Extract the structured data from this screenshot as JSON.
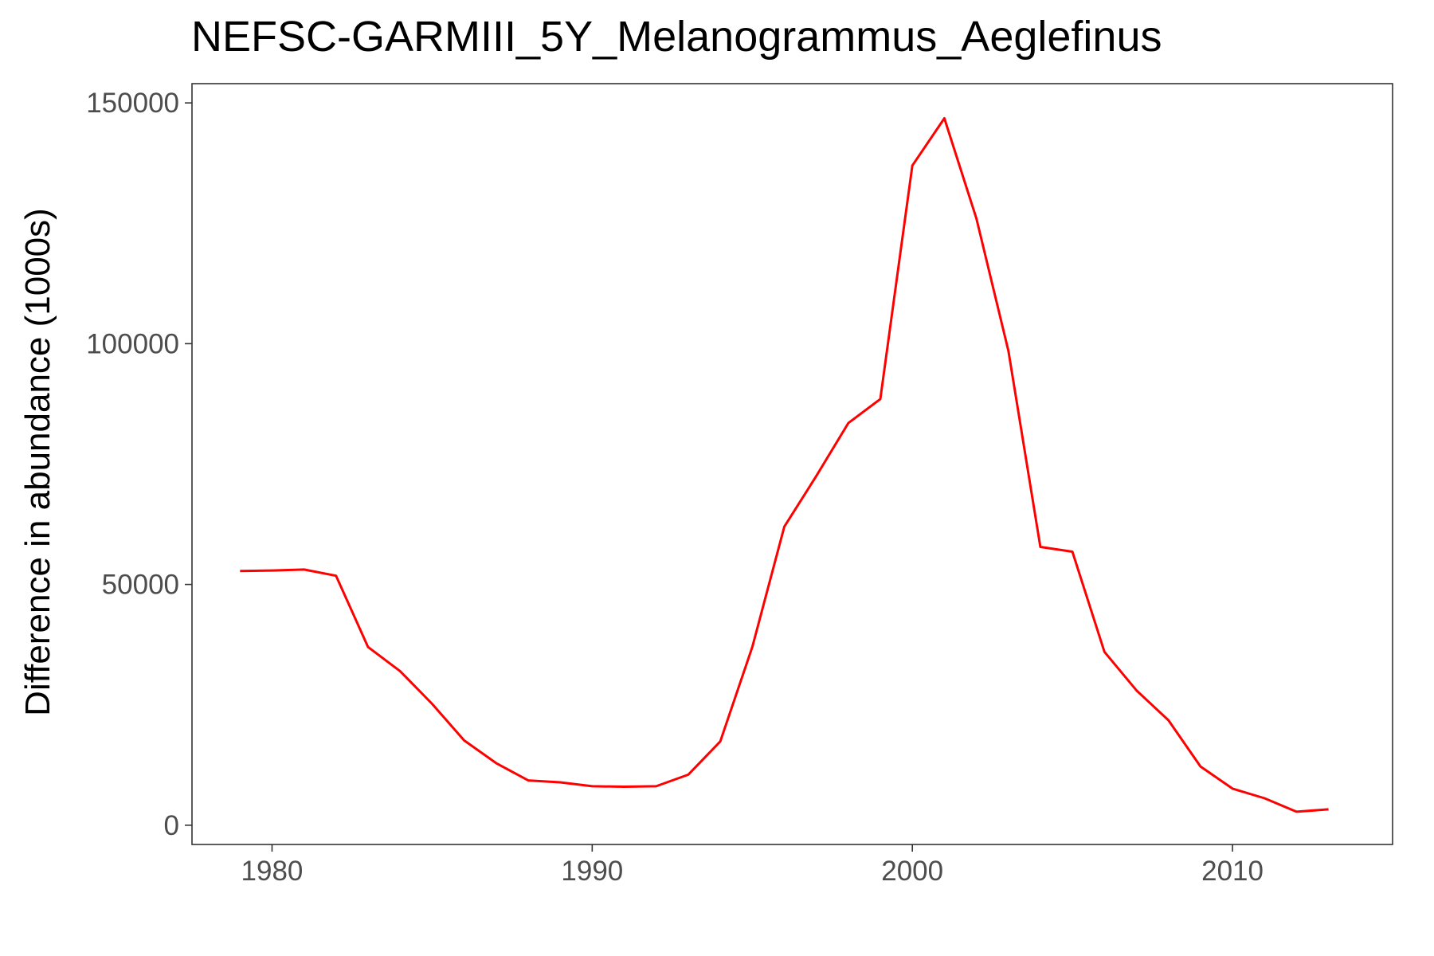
{
  "chart_data": {
    "type": "line",
    "title": "NEFSC-GARMIII_5Y_Melanogrammus_Aeglefinus",
    "xlabel": "",
    "ylabel": "Difference in abundance (1000s)",
    "xlim": [
      1977.5,
      2015
    ],
    "ylim": [
      -4000,
      154000
    ],
    "x_ticks": [
      1980,
      1990,
      2000,
      2010
    ],
    "y_ticks": [
      0,
      50000,
      100000,
      150000
    ],
    "x_tick_labels": [
      "1980",
      "1990",
      "2000",
      "2010"
    ],
    "y_tick_labels": [
      "0",
      "50000",
      "100000",
      "150000"
    ],
    "grid": false,
    "legend": "none",
    "series": [
      {
        "color": "#ff0000",
        "points": [
          [
            1979,
            52800
          ],
          [
            1980,
            52900
          ],
          [
            1981,
            53100
          ],
          [
            1982,
            51800
          ],
          [
            1983,
            37000
          ],
          [
            1984,
            32000
          ],
          [
            1985,
            25200
          ],
          [
            1986,
            17600
          ],
          [
            1987,
            12900
          ],
          [
            1988,
            9300
          ],
          [
            1989,
            8900
          ],
          [
            1990,
            8100
          ],
          [
            1991,
            8000
          ],
          [
            1992,
            8100
          ],
          [
            1993,
            10500
          ],
          [
            1994,
            17400
          ],
          [
            1995,
            37000
          ],
          [
            1996,
            62000
          ],
          [
            1997,
            72500
          ],
          [
            1998,
            83500
          ],
          [
            1999,
            88500
          ],
          [
            2000,
            137000
          ],
          [
            2001,
            146800
          ],
          [
            2002,
            126000
          ],
          [
            2003,
            98500
          ],
          [
            2004,
            57800
          ],
          [
            2005,
            56800
          ],
          [
            2006,
            36000
          ],
          [
            2007,
            28000
          ],
          [
            2008,
            21800
          ],
          [
            2009,
            12200
          ],
          [
            2010,
            7600
          ],
          [
            2011,
            5600
          ],
          [
            2012,
            2800
          ],
          [
            2013,
            3300
          ]
        ]
      }
    ]
  }
}
